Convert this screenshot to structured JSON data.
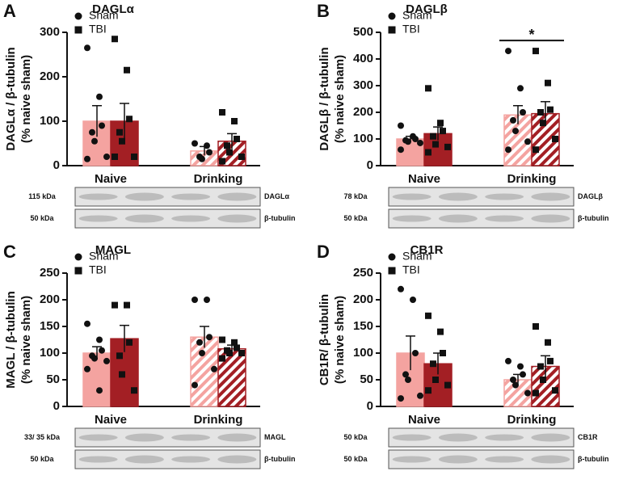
{
  "chart_data": [
    {
      "type": "bar",
      "panel": "A",
      "title": "DAGLα",
      "ylabel": [
        "DAGLα / β-tubulin",
        "(% naive sham)"
      ],
      "categories": [
        "Naive",
        "Drinking"
      ],
      "hatch": [
        false,
        true
      ],
      "ylim": [
        0,
        300
      ],
      "yticks": [
        0,
        100,
        200,
        300
      ],
      "series": [
        {
          "name": "Sham",
          "color": "#f4a3a0",
          "marker": "circle",
          "values": [
            100,
            33
          ],
          "errors": [
            35,
            10
          ],
          "points": [
            [
              265,
              155,
              90,
              75,
              55,
              20,
              15
            ],
            [
              50,
              45,
              30,
              20,
              15
            ]
          ]
        },
        {
          "name": "TBI",
          "color": "#a31f24",
          "marker": "square",
          "values": [
            100,
            55
          ],
          "errors": [
            40,
            17
          ],
          "points": [
            [
              285,
              215,
              105,
              75,
              55,
              20,
              20
            ],
            [
              120,
              100,
              60,
              45,
              30,
              20,
              10
            ]
          ]
        }
      ],
      "blots": [
        {
          "size": "115 kDa",
          "protein": "DAGLα"
        },
        {
          "size": "50 kDa",
          "protein": "β-tubulin"
        }
      ]
    },
    {
      "type": "bar",
      "panel": "B",
      "title": "DAGLβ",
      "ylabel": [
        "DAGLβ / β-tubulin",
        "(% naive sham)"
      ],
      "categories": [
        "Naive",
        "Drinking"
      ],
      "hatch": [
        false,
        true
      ],
      "ylim": [
        0,
        500
      ],
      "yticks": [
        0,
        100,
        200,
        300,
        400,
        500
      ],
      "series": [
        {
          "name": "Sham",
          "color": "#f4a3a0",
          "marker": "circle",
          "values": [
            100,
            190
          ],
          "errors": [
            10,
            35
          ],
          "points": [
            [
              150,
              110,
              100,
              95,
              90,
              85,
              60
            ],
            [
              430,
              290,
              200,
              170,
              130,
              90,
              60
            ]
          ]
        },
        {
          "name": "TBI",
          "color": "#a31f24",
          "marker": "square",
          "values": [
            120,
            195
          ],
          "errors": [
            25,
            45
          ],
          "points": [
            [
              290,
              160,
              130,
              110,
              80,
              70,
              50
            ],
            [
              430,
              310,
              210,
              200,
              160,
              100,
              60
            ]
          ]
        }
      ],
      "significance": {
        "label": "*",
        "category": 1
      },
      "blots": [
        {
          "size": "78 kDa",
          "protein": "DAGLβ"
        },
        {
          "size": "50 kDa",
          "protein": "β-tubulin"
        }
      ]
    },
    {
      "type": "bar",
      "panel": "C",
      "title": "MAGL",
      "ylabel": [
        "MAGL / β-tubulin",
        "(% naive sham)"
      ],
      "categories": [
        "Naive",
        "Drinking"
      ],
      "hatch": [
        false,
        true
      ],
      "ylim": [
        0,
        250
      ],
      "yticks": [
        0,
        50,
        100,
        150,
        200,
        250
      ],
      "series": [
        {
          "name": "Sham",
          "color": "#f4a3a0",
          "marker": "circle",
          "values": [
            100,
            130
          ],
          "errors": [
            12,
            20
          ],
          "points": [
            [
              155,
              125,
              105,
              95,
              90,
              85,
              70,
              30
            ],
            [
              200,
              200,
              130,
              120,
              100,
              70,
              40
            ]
          ]
        },
        {
          "name": "TBI",
          "color": "#a31f24",
          "marker": "square",
          "values": [
            127,
            108
          ],
          "errors": [
            25,
            7
          ],
          "points": [
            [
              190,
              190,
              120,
              95,
              60,
              30
            ],
            [
              125,
              120,
              110,
              105,
              100,
              100,
              90
            ]
          ]
        }
      ],
      "blots": [
        {
          "size": "33/ 35 kDa",
          "protein": "MAGL"
        },
        {
          "size": "50 kDa",
          "protein": "β-tubulin"
        }
      ]
    },
    {
      "type": "bar",
      "panel": "D",
      "title": "CB1R",
      "ylabel": [
        "CB1R/ β-tubulin",
        "(% naive sham)"
      ],
      "categories": [
        "Naive",
        "Drinking"
      ],
      "hatch": [
        false,
        true
      ],
      "ylim": [
        0,
        250
      ],
      "yticks": [
        0,
        50,
        100,
        150,
        200,
        250
      ],
      "series": [
        {
          "name": "Sham",
          "color": "#f4a3a0",
          "marker": "circle",
          "values": [
            100,
            50
          ],
          "errors": [
            32,
            10
          ],
          "points": [
            [
              220,
              200,
              100,
              60,
              50,
              20,
              15
            ],
            [
              85,
              75,
              60,
              50,
              40,
              25
            ]
          ]
        },
        {
          "name": "TBI",
          "color": "#a31f24",
          "marker": "square",
          "values": [
            80,
            75
          ],
          "errors": [
            20,
            20
          ],
          "points": [
            [
              170,
              140,
              100,
              80,
              50,
              40,
              30
            ],
            [
              150,
              120,
              85,
              75,
              50,
              30,
              25
            ]
          ]
        }
      ],
      "blots": [
        {
          "size": "50 kDa",
          "protein": "CB1R"
        },
        {
          "size": "50 kDa",
          "protein": "β-tubulin"
        }
      ]
    }
  ]
}
